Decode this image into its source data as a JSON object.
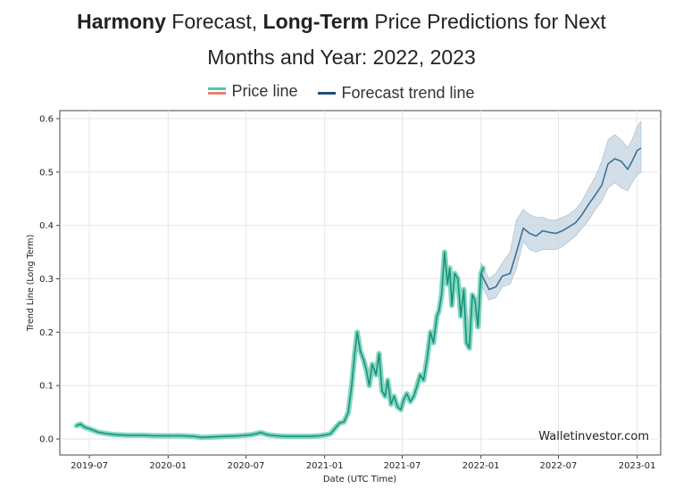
{
  "title": {
    "line1_strong1": "Harmony",
    "line1_text1": " Forecast, ",
    "line1_strong2": "Long-Term",
    "line1_text2": " Price Predictions for Next",
    "line2": "Months and Year: 2022, 2023"
  },
  "legend": {
    "price": "Price line",
    "forecast": "Forecast trend line"
  },
  "watermark": "Walletinvestor.com",
  "colors": {
    "price_line": "#1e8f7f",
    "price_glow": "#4fc9a6",
    "forecast_line": "#3f7094",
    "forecast_band": "#c3d4e2",
    "grid": "#e6e6e6"
  },
  "chart_data": {
    "type": "line",
    "xlabel": "Date (UTC Time)",
    "ylabel": "Trend Line (Long Term)",
    "ylim": [
      -0.03,
      0.615
    ],
    "xlim": [
      "2019-04-23",
      "2023-02-25"
    ],
    "grid": true,
    "legend_position": "top-center",
    "x_ticks": [
      "2019-07-01",
      "2020-01-01",
      "2020-07-01",
      "2021-01-01",
      "2021-07-01",
      "2022-01-01",
      "2022-07-01",
      "2023-01-01"
    ],
    "x_tick_labels": [
      "2019-07",
      "2020-01",
      "2020-07",
      "2021-01",
      "2021-07",
      "2022-01",
      "2022-07",
      "2023-01"
    ],
    "y_ticks": [
      0.0,
      0.1,
      0.2,
      0.3,
      0.4,
      0.5,
      0.6
    ],
    "y_tick_labels": [
      "0.0",
      "0.1",
      "0.2",
      "0.3",
      "0.4",
      "0.5",
      "0.6"
    ],
    "series": [
      {
        "name": "Price line",
        "x": [
          "2019-06-01",
          "2019-06-10",
          "2019-06-20",
          "2019-07-05",
          "2019-07-20",
          "2019-08-10",
          "2019-09-01",
          "2019-10-01",
          "2019-11-01",
          "2019-12-01",
          "2020-01-01",
          "2020-02-01",
          "2020-03-01",
          "2020-03-20",
          "2020-04-15",
          "2020-05-15",
          "2020-06-15",
          "2020-07-15",
          "2020-08-05",
          "2020-08-20",
          "2020-09-10",
          "2020-10-01",
          "2020-11-01",
          "2020-12-01",
          "2020-12-20",
          "2021-01-05",
          "2021-01-15",
          "2021-01-25",
          "2021-02-05",
          "2021-02-15",
          "2021-02-25",
          "2021-03-05",
          "2021-03-12",
          "2021-03-18",
          "2021-03-25",
          "2021-04-01",
          "2021-04-08",
          "2021-04-15",
          "2021-04-22",
          "2021-05-01",
          "2021-05-08",
          "2021-05-15",
          "2021-05-22",
          "2021-05-28",
          "2021-06-05",
          "2021-06-12",
          "2021-06-20",
          "2021-06-28",
          "2021-07-05",
          "2021-07-12",
          "2021-07-20",
          "2021-07-28",
          "2021-08-05",
          "2021-08-12",
          "2021-08-20",
          "2021-08-28",
          "2021-09-05",
          "2021-09-12",
          "2021-09-20",
          "2021-09-25",
          "2021-10-01",
          "2021-10-08",
          "2021-10-15",
          "2021-10-20",
          "2021-10-25",
          "2021-11-01",
          "2021-11-08",
          "2021-11-15",
          "2021-11-22",
          "2021-11-28",
          "2021-12-05",
          "2021-12-12",
          "2021-12-18",
          "2021-12-25",
          "2022-01-01",
          "2022-01-06"
        ],
        "y": [
          0.025,
          0.028,
          0.022,
          0.018,
          0.013,
          0.01,
          0.008,
          0.007,
          0.007,
          0.006,
          0.006,
          0.006,
          0.005,
          0.003,
          0.004,
          0.005,
          0.006,
          0.008,
          0.012,
          0.008,
          0.006,
          0.005,
          0.005,
          0.005,
          0.006,
          0.008,
          0.01,
          0.02,
          0.03,
          0.032,
          0.05,
          0.1,
          0.16,
          0.2,
          0.165,
          0.15,
          0.13,
          0.1,
          0.14,
          0.12,
          0.16,
          0.09,
          0.08,
          0.11,
          0.065,
          0.08,
          0.06,
          0.055,
          0.075,
          0.085,
          0.07,
          0.08,
          0.1,
          0.12,
          0.11,
          0.15,
          0.2,
          0.18,
          0.23,
          0.24,
          0.27,
          0.35,
          0.29,
          0.32,
          0.25,
          0.31,
          0.3,
          0.23,
          0.28,
          0.18,
          0.17,
          0.27,
          0.26,
          0.21,
          0.31,
          0.32
        ]
      },
      {
        "name": "Forecast trend line",
        "x": [
          "2022-01-01",
          "2022-01-20",
          "2022-02-05",
          "2022-02-20",
          "2022-03-10",
          "2022-03-25",
          "2022-04-10",
          "2022-04-25",
          "2022-05-10",
          "2022-05-25",
          "2022-06-10",
          "2022-06-25",
          "2022-07-10",
          "2022-07-25",
          "2022-08-10",
          "2022-08-25",
          "2022-09-10",
          "2022-09-25",
          "2022-10-10",
          "2022-10-25",
          "2022-11-10",
          "2022-11-25",
          "2022-12-10",
          "2022-12-20",
          "2023-01-01",
          "2023-01-10"
        ],
        "y": [
          0.31,
          0.28,
          0.285,
          0.305,
          0.31,
          0.35,
          0.395,
          0.385,
          0.38,
          0.39,
          0.387,
          0.385,
          0.39,
          0.397,
          0.405,
          0.42,
          0.44,
          0.457,
          0.475,
          0.515,
          0.525,
          0.52,
          0.505,
          0.52,
          0.54,
          0.545
        ],
        "upper": [
          0.33,
          0.3,
          0.31,
          0.33,
          0.35,
          0.41,
          0.43,
          0.42,
          0.415,
          0.415,
          0.41,
          0.41,
          0.415,
          0.42,
          0.43,
          0.445,
          0.47,
          0.49,
          0.52,
          0.56,
          0.57,
          0.56,
          0.545,
          0.56,
          0.585,
          0.595
        ],
        "lower": [
          0.29,
          0.26,
          0.265,
          0.285,
          0.29,
          0.32,
          0.37,
          0.355,
          0.35,
          0.355,
          0.355,
          0.355,
          0.36,
          0.37,
          0.38,
          0.395,
          0.41,
          0.43,
          0.445,
          0.47,
          0.48,
          0.47,
          0.465,
          0.48,
          0.495,
          0.5
        ]
      }
    ]
  }
}
